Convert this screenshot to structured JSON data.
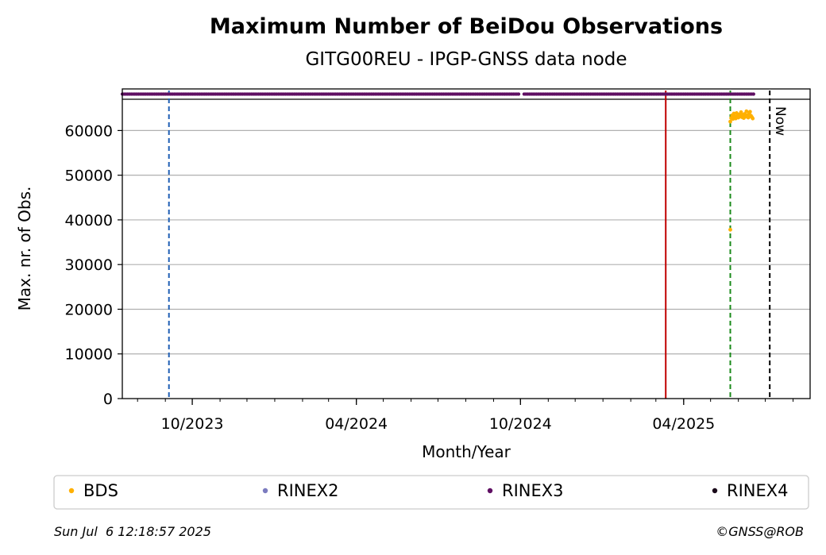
{
  "chart_data": {
    "type": "scatter",
    "title": "Maximum Number of BeiDou Observations",
    "subtitle": "GITG00REU - IPGP-GNSS data node",
    "xlabel": "Month/Year",
    "ylabel": "Max. nr. of Obs.",
    "ylim": [
      0,
      67000
    ],
    "yticks": [
      0,
      10000,
      20000,
      30000,
      40000,
      50000,
      60000
    ],
    "xlim": [
      "2023-07-15",
      "2025-08-20"
    ],
    "xticks": [
      {
        "date": "2023-10-01",
        "label": "10/2023"
      },
      {
        "date": "2024-04-01",
        "label": "04/2024"
      },
      {
        "date": "2024-10-01",
        "label": "10/2024"
      },
      {
        "date": "2025-04-01",
        "label": "04/2025"
      }
    ],
    "grid": "horizontal",
    "legend_position": "below",
    "series": [
      {
        "name": "BDS",
        "color": "#ffb000",
        "points": [
          {
            "date": "2025-05-23",
            "value": 37800
          },
          {
            "date": "2025-05-23",
            "value": 62000
          },
          {
            "date": "2025-05-24",
            "value": 62800
          },
          {
            "date": "2025-05-25",
            "value": 63400
          },
          {
            "date": "2025-05-26",
            "value": 62600
          },
          {
            "date": "2025-05-27",
            "value": 63800
          },
          {
            "date": "2025-05-28",
            "value": 63100
          },
          {
            "date": "2025-05-29",
            "value": 62700
          },
          {
            "date": "2025-05-30",
            "value": 63900
          },
          {
            "date": "2025-05-31",
            "value": 63300
          },
          {
            "date": "2025-06-01",
            "value": 62900
          },
          {
            "date": "2025-06-02",
            "value": 63600
          },
          {
            "date": "2025-06-03",
            "value": 63200
          },
          {
            "date": "2025-06-04",
            "value": 64100
          },
          {
            "date": "2025-06-05",
            "value": 63000
          },
          {
            "date": "2025-06-06",
            "value": 63500
          },
          {
            "date": "2025-06-07",
            "value": 62800
          },
          {
            "date": "2025-06-08",
            "value": 63700
          },
          {
            "date": "2025-06-09",
            "value": 63100
          },
          {
            "date": "2025-06-10",
            "value": 64300
          },
          {
            "date": "2025-06-11",
            "value": 63400
          },
          {
            "date": "2025-06-12",
            "value": 62900
          },
          {
            "date": "2025-06-13",
            "value": 63800
          },
          {
            "date": "2025-06-14",
            "value": 64200
          },
          {
            "date": "2025-06-15",
            "value": 63300
          },
          {
            "date": "2025-06-16",
            "value": 63000
          },
          {
            "date": "2025-06-17",
            "value": 62700
          }
        ]
      },
      {
        "name": "RINEX2",
        "color": "#7b7bbf",
        "points": []
      },
      {
        "name": "RINEX3",
        "color": "#5f0f63",
        "availability_ranges": [
          {
            "start": "2023-07-15",
            "end": "2024-09-30"
          },
          {
            "start": "2024-10-05",
            "end": "2025-06-19"
          }
        ]
      },
      {
        "name": "RINEX4",
        "color": "#1a0a1a",
        "points": []
      }
    ],
    "vertical_lines": [
      {
        "date": "2023-09-05",
        "color": "#1f5fb4",
        "style": "dashed"
      },
      {
        "date": "2025-03-12",
        "color": "#c00000",
        "style": "solid"
      },
      {
        "date": "2025-05-23",
        "color": "#1a8a1a",
        "style": "dashed"
      },
      {
        "date": "2025-07-06",
        "color": "#000000",
        "style": "dashed",
        "label": "Now"
      }
    ]
  },
  "footer": {
    "timestamp": "Sun Jul  6 12:18:57 2025",
    "credit": "©GNSS@ROB"
  }
}
